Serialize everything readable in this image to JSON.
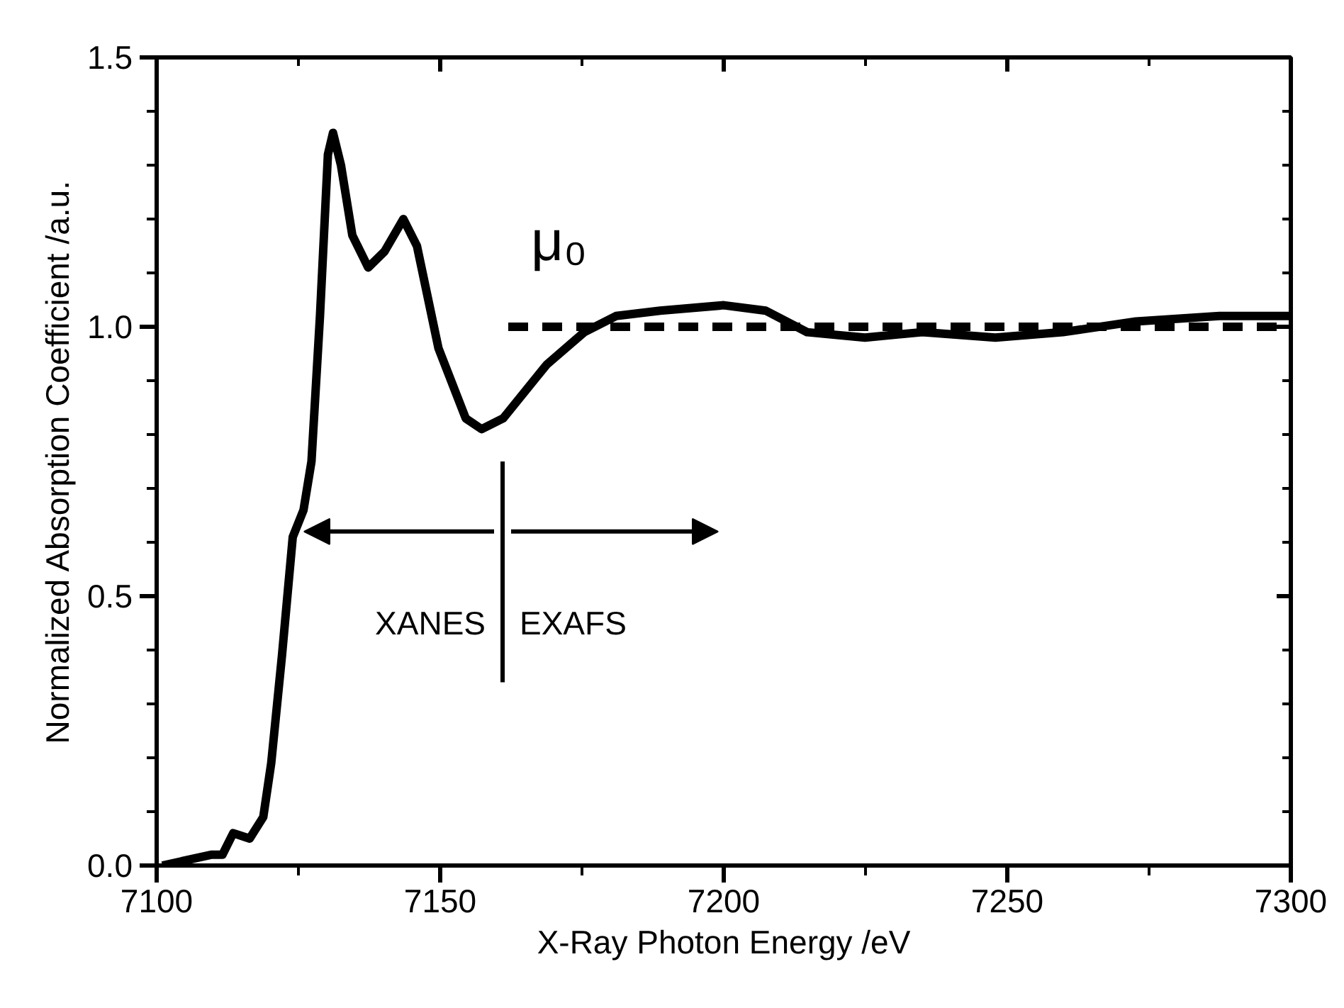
{
  "chart_data": {
    "type": "line",
    "xlabel": "X-Ray Photon Energy /eV",
    "ylabel": "Normalized Absorption Coefficient /a.u.",
    "xlim": [
      7100,
      7300
    ],
    "ylim": [
      0,
      1.5
    ],
    "xticks": [
      7100,
      7150,
      7200,
      7250,
      7300
    ],
    "yticks": [
      {
        "value": 0,
        "label": "0.0"
      },
      {
        "value": 0.5,
        "label": "0.5"
      },
      {
        "value": 1,
        "label": "1.0"
      },
      {
        "value": 1.5,
        "label": "1.5"
      }
    ],
    "grid": false,
    "legend": false,
    "marker": "none",
    "line_style": "solid",
    "series": [
      {
        "color": "#000000",
        "x": [
          7101,
          7109.6,
          7111.6,
          7113.5,
          7116.4,
          7118.8,
          7120.2,
          7122.1,
          7124,
          7125.9,
          7127.3,
          7128.8,
          7130.2,
          7131.1,
          7132.5,
          7134.5,
          7137.3,
          7140.2,
          7143.5,
          7145.9,
          7149.7,
          7154.5,
          7157.3,
          7161.1,
          7168.8,
          7175.4,
          7181,
          7188.8,
          7200,
          7207.4,
          7214.7,
          7224.9,
          7235,
          7247.9,
          7259.8,
          7272.7,
          7287.4,
          7300
        ],
        "values": [
          0.0,
          0.02,
          0.02,
          0.06,
          0.05,
          0.09,
          0.19,
          0.39,
          0.61,
          0.66,
          0.75,
          1.02,
          1.32,
          1.36,
          1.3,
          1.17,
          1.11,
          1.14,
          1.2,
          1.15,
          0.96,
          0.83,
          0.81,
          0.83,
          0.93,
          0.99,
          1.02,
          1.03,
          1.04,
          1.03,
          0.99,
          0.98,
          0.99,
          0.98,
          0.99,
          1.01,
          1.02,
          1.02
        ]
      },
      {
        "name": "μ₀",
        "color": "#000000",
        "line_style": "dashed",
        "x": [
          7162,
          7300
        ],
        "values": [
          1,
          1
        ]
      }
    ],
    "ref_lines": [
      {
        "axis": "x",
        "value": 7161,
        "color": "#000000",
        "line_style": "solid"
      }
    ],
    "annotations": [
      "XANES",
      "EXAFS"
    ]
  }
}
